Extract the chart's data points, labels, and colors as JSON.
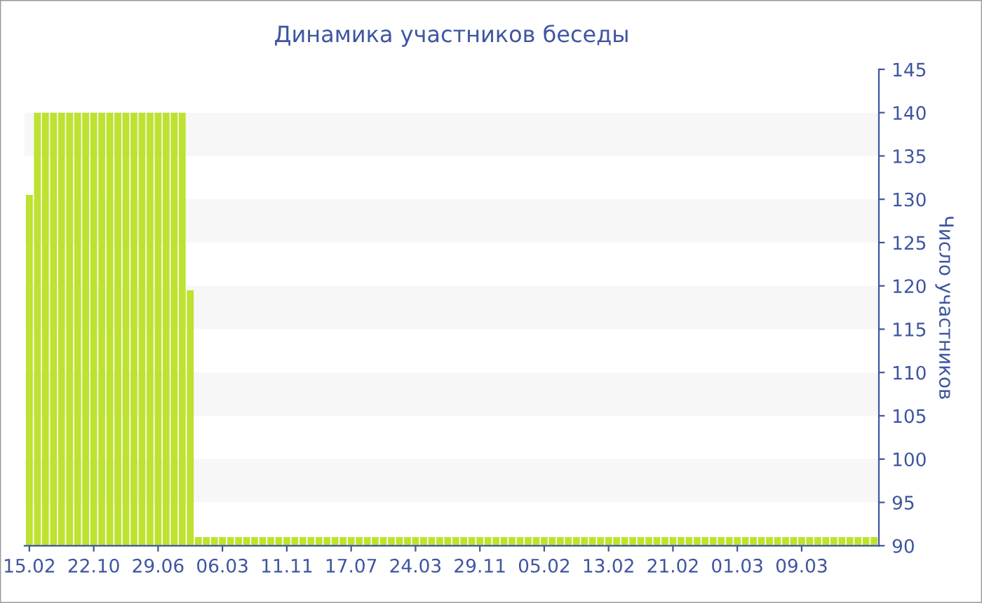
{
  "chart_data": {
    "type": "bar",
    "title": "Динамика участников беседы",
    "ylabel": "Число участников",
    "categories": [
      "15.02",
      null,
      null,
      null,
      null,
      null,
      null,
      null,
      "22.10",
      null,
      null,
      null,
      null,
      null,
      null,
      null,
      "29.06",
      null,
      null,
      null,
      null,
      null,
      null,
      null,
      "06.03",
      null,
      null,
      null,
      null,
      null,
      null,
      null,
      "11.11",
      null,
      null,
      null,
      null,
      null,
      null,
      null,
      "17.07",
      null,
      null,
      null,
      null,
      null,
      null,
      null,
      "24.03",
      null,
      null,
      null,
      null,
      null,
      null,
      null,
      "29.11",
      null,
      null,
      null,
      null,
      null,
      null,
      null,
      "05.02",
      null,
      null,
      null,
      null,
      null,
      null,
      null,
      "13.02",
      null,
      null,
      null,
      null,
      null,
      null,
      null,
      "21.02",
      null,
      null,
      null,
      null,
      null,
      null,
      null,
      "01.03",
      null,
      null,
      null,
      null,
      null,
      null,
      null,
      "09.03",
      null,
      null,
      null,
      null,
      null,
      null,
      null,
      null,
      null
    ],
    "values": [
      130.5,
      140,
      140,
      140,
      140,
      140,
      140,
      140,
      140,
      140,
      140,
      140,
      140,
      140,
      140,
      140,
      140,
      140,
      140,
      140,
      119.5,
      91,
      91,
      91,
      91,
      91,
      91,
      91,
      91,
      91,
      91,
      91,
      91,
      91,
      91,
      91,
      91,
      91,
      91,
      91,
      91,
      91,
      91,
      91,
      91,
      91,
      91,
      91,
      91,
      91,
      91,
      91,
      91,
      91,
      91,
      91,
      91,
      91,
      91,
      91,
      91,
      91,
      91,
      91,
      91,
      91,
      91,
      91,
      91,
      91,
      91,
      91,
      91,
      91,
      91,
      91,
      91,
      91,
      91,
      91,
      91,
      91,
      91,
      91,
      91,
      91,
      91,
      91,
      91,
      91,
      91,
      91,
      91,
      91,
      91,
      91,
      91,
      91,
      91,
      91,
      91,
      91,
      91,
      91,
      91,
      91
    ],
    "color": "#bde22f",
    "ylim": [
      90,
      145
    ],
    "yticks": [
      90,
      95,
      100,
      105,
      110,
      115,
      120,
      125,
      130,
      135,
      140,
      145
    ],
    "bands": [
      {
        "axis": "y",
        "from": 95,
        "to": 100,
        "color": "#f7f7f7"
      },
      {
        "axis": "y",
        "from": 105,
        "to": 110,
        "color": "#f7f7f7"
      },
      {
        "axis": "y",
        "from": 115,
        "to": 120,
        "color": "#f7f7f7"
      },
      {
        "axis": "y",
        "from": 125,
        "to": 130,
        "color": "#f7f7f7"
      },
      {
        "axis": "y",
        "from": 135,
        "to": 140,
        "color": "#f7f7f7"
      }
    ]
  }
}
